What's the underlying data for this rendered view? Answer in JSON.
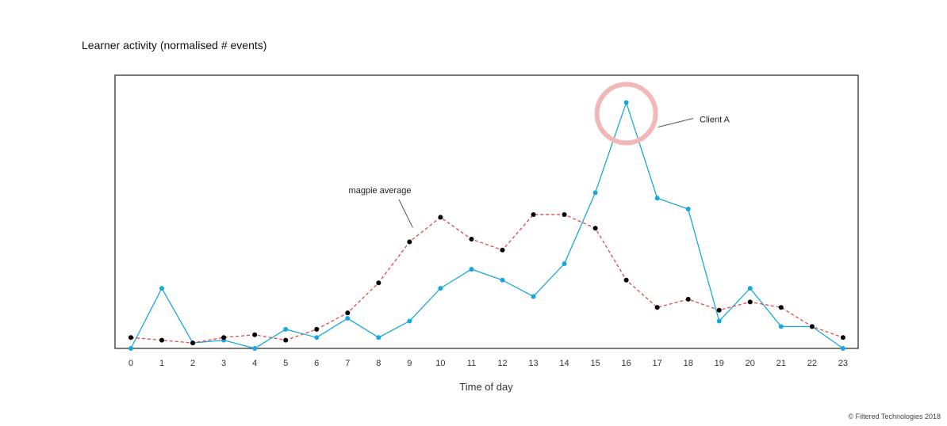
{
  "page": {
    "title": "Learner activity (normalised # events)",
    "footer": "© Filtered Technologies 2018"
  },
  "chart_data": {
    "type": "line",
    "title": "Learner activity (normalised # events)",
    "xlabel": "Time of day",
    "ylabel": "",
    "x": [
      0,
      1,
      2,
      3,
      4,
      5,
      6,
      7,
      8,
      9,
      10,
      11,
      12,
      13,
      14,
      15,
      16,
      17,
      18,
      19,
      20,
      21,
      22,
      23
    ],
    "ylim": [
      0,
      100
    ],
    "grid": false,
    "series": [
      {
        "name": "Client A",
        "color": "#1aa7e0",
        "dashed": false,
        "values": [
          0,
          22,
          2,
          3,
          0,
          7,
          4,
          11,
          4,
          10,
          22,
          29,
          25,
          19,
          31,
          57,
          90,
          55,
          51,
          10,
          22,
          8,
          8,
          0
        ]
      },
      {
        "name": "magpie average",
        "color": "#e0484d",
        "dashed": true,
        "values": [
          4,
          3,
          2,
          4,
          5,
          3,
          7,
          13,
          24,
          39,
          48,
          40,
          36,
          49,
          49,
          44,
          25,
          15,
          18,
          14,
          17,
          15,
          8,
          4
        ]
      }
    ],
    "annotations": [
      {
        "text": "magpie average",
        "target_series": "magpie average",
        "target_x": 9
      },
      {
        "text": "Client A",
        "target_series": "Client A",
        "target_x": 16,
        "highlight": "circle",
        "highlight_color": "#f2b8b8"
      }
    ]
  }
}
